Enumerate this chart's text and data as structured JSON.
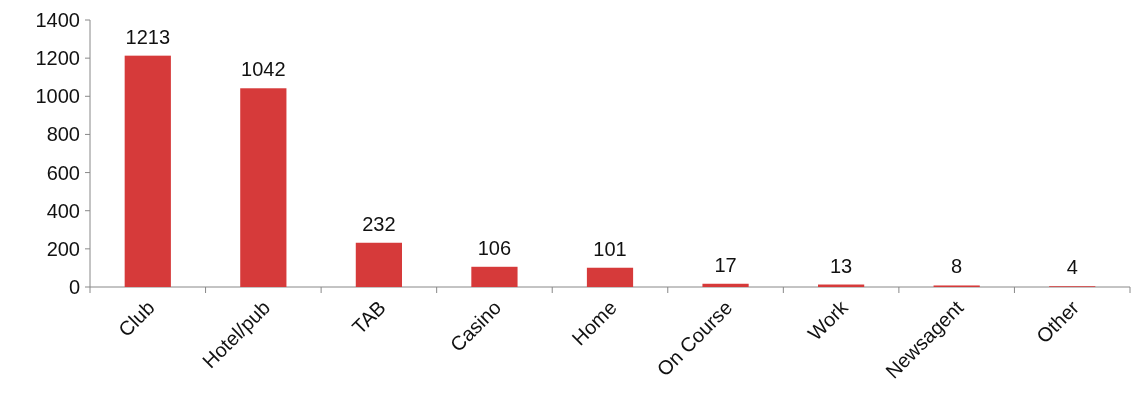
{
  "chart_data": {
    "type": "bar",
    "categories": [
      "Club",
      "Hotel/pub",
      "TAB",
      "Casino",
      "Home",
      "On Course",
      "Work",
      "Newsagent",
      "Other"
    ],
    "values": [
      1213,
      1042,
      232,
      106,
      101,
      17,
      13,
      8,
      4
    ],
    "color": "#d63a3a",
    "data_labels": true,
    "grid": false,
    "ylim": [
      0,
      1400
    ],
    "yticks": [
      0,
      200,
      400,
      600,
      800,
      1000,
      1200,
      1400
    ]
  }
}
